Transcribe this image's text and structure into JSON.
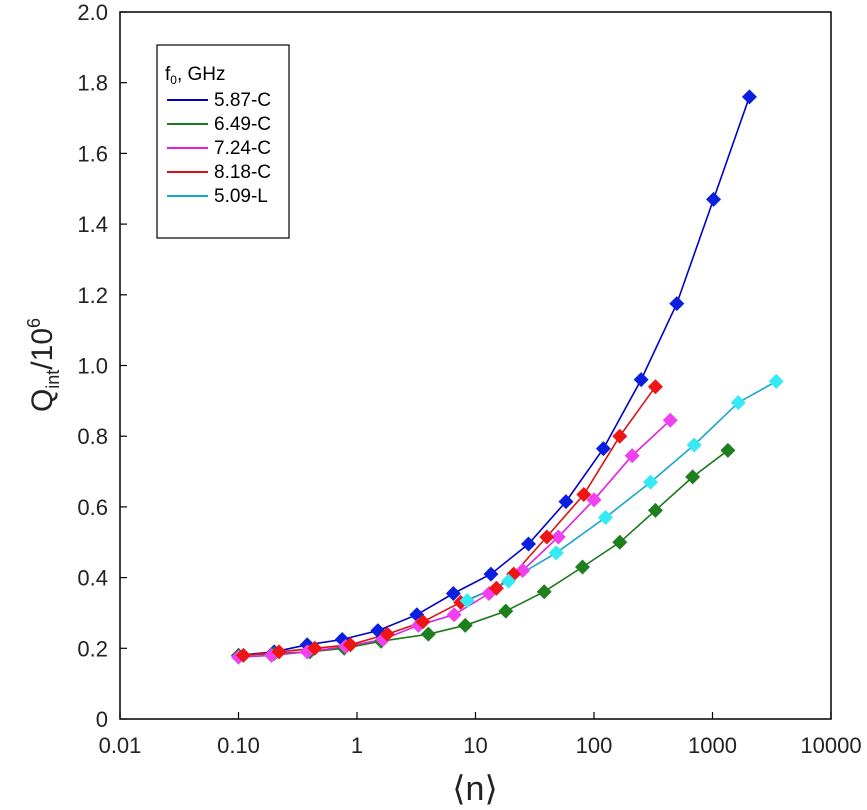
{
  "chart_data": {
    "type": "line",
    "xscale": "log",
    "xlim": [
      0.01,
      10000
    ],
    "ylim": [
      0,
      2.0
    ],
    "x_ticks": [
      0.01,
      0.1,
      1,
      10,
      100,
      1000,
      10000
    ],
    "x_tick_labels": [
      "0.01",
      "0.10",
      "1",
      "10",
      "100",
      "1000",
      "10000"
    ],
    "y_ticks": [
      0,
      0.2,
      0.4,
      0.6,
      0.8,
      1.0,
      1.2,
      1.4,
      1.6,
      1.8,
      2.0
    ],
    "y_tick_labels": [
      "0",
      "0.2",
      "0.4",
      "0.6",
      "0.8",
      "1.0",
      "1.2",
      "1.4",
      "1.6",
      "1.8",
      "2.0"
    ],
    "xlabel": "⟨n⟩",
    "ylabel": {
      "main": "Q",
      "sub": "int",
      "rest": "/10",
      "sup": "6"
    },
    "legend": {
      "position": "top-left",
      "title_main": "f",
      "title_sub": "0",
      "title_rest": ", GHz"
    },
    "series": [
      {
        "name": "5.87-C",
        "line_color": "#0000cc",
        "marker_color": "#0a1fe0",
        "x": [
          0.1,
          0.2,
          0.38,
          0.75,
          1.5,
          3.2,
          6.5,
          13.5,
          28,
          58,
          120,
          250,
          500,
          1020,
          2050
        ],
        "y": [
          0.18,
          0.19,
          0.21,
          0.225,
          0.25,
          0.295,
          0.355,
          0.41,
          0.495,
          0.615,
          0.765,
          0.96,
          1.175,
          1.47,
          1.76
        ]
      },
      {
        "name": "6.49-C",
        "line_color": "#1a7a1a",
        "marker_color": "#1f7f1f",
        "x": [
          0.1,
          0.2,
          0.4,
          0.78,
          1.6,
          4.0,
          8.2,
          18,
          38,
          80,
          165,
          330,
          680,
          1350
        ],
        "y": [
          0.18,
          0.185,
          0.19,
          0.2,
          0.22,
          0.24,
          0.265,
          0.305,
          0.36,
          0.43,
          0.5,
          0.59,
          0.685,
          0.76
        ]
      },
      {
        "name": "7.24-C",
        "line_color": "#e020e0",
        "marker_color": "#f040f0",
        "x": [
          0.1,
          0.19,
          0.38,
          0.8,
          1.65,
          3.3,
          6.6,
          13,
          25,
          50,
          100,
          210,
          440
        ],
        "y": [
          0.175,
          0.18,
          0.19,
          0.205,
          0.225,
          0.265,
          0.295,
          0.355,
          0.42,
          0.515,
          0.62,
          0.745,
          0.845
        ]
      },
      {
        "name": "8.18-C",
        "line_color": "#dd1010",
        "marker_color": "#ee1515",
        "x": [
          0.11,
          0.22,
          0.44,
          0.88,
          1.8,
          3.6,
          7.5,
          15,
          21,
          40,
          82,
          165,
          330
        ],
        "y": [
          0.18,
          0.19,
          0.2,
          0.21,
          0.24,
          0.275,
          0.33,
          0.37,
          0.41,
          0.515,
          0.635,
          0.8,
          0.94
        ]
      },
      {
        "name": "5.09-L",
        "line_color": "#1aa6c8",
        "marker_color": "#33eaf5",
        "x": [
          8.5,
          19,
          48,
          125,
          300,
          700,
          1650,
          3450
        ],
        "y": [
          0.335,
          0.39,
          0.47,
          0.57,
          0.67,
          0.775,
          0.895,
          0.955
        ]
      }
    ]
  }
}
